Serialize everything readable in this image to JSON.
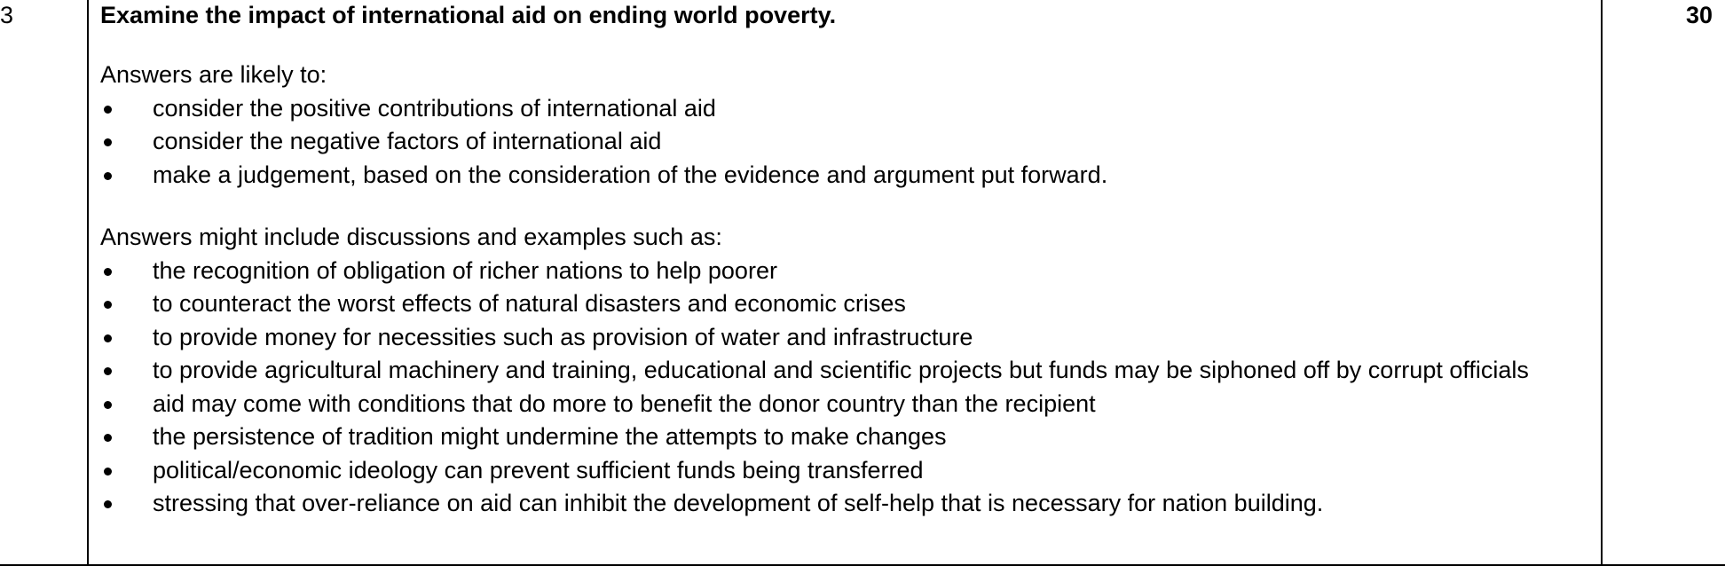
{
  "row": {
    "question_number": "3",
    "question": "Examine the impact of international aid on ending world poverty.",
    "marks": "30"
  },
  "section1": {
    "intro": "Answers are likely to:",
    "bullets": [
      "consider the positive contributions of international aid",
      "consider the negative factors of international aid",
      "make a judgement, based on the consideration of the evidence and argument put forward."
    ]
  },
  "section2": {
    "intro": "Answers might include discussions and examples such as:",
    "bullets": [
      "the recognition of obligation of richer nations to help poorer",
      "to counteract the worst effects of natural disasters and economic crises",
      "to provide money for necessities such as provision of water and infrastructure",
      "to provide agricultural machinery and training, educational and scientific projects but funds may be siphoned off by corrupt officials",
      "aid may come with conditions that do more to benefit the donor country than the recipient",
      "the persistence of tradition might undermine the attempts to make changes",
      "political/economic ideology can prevent sufficient funds being transferred",
      "stressing that over-reliance on aid can inhibit the development of self-help that is necessary for nation building."
    ]
  }
}
